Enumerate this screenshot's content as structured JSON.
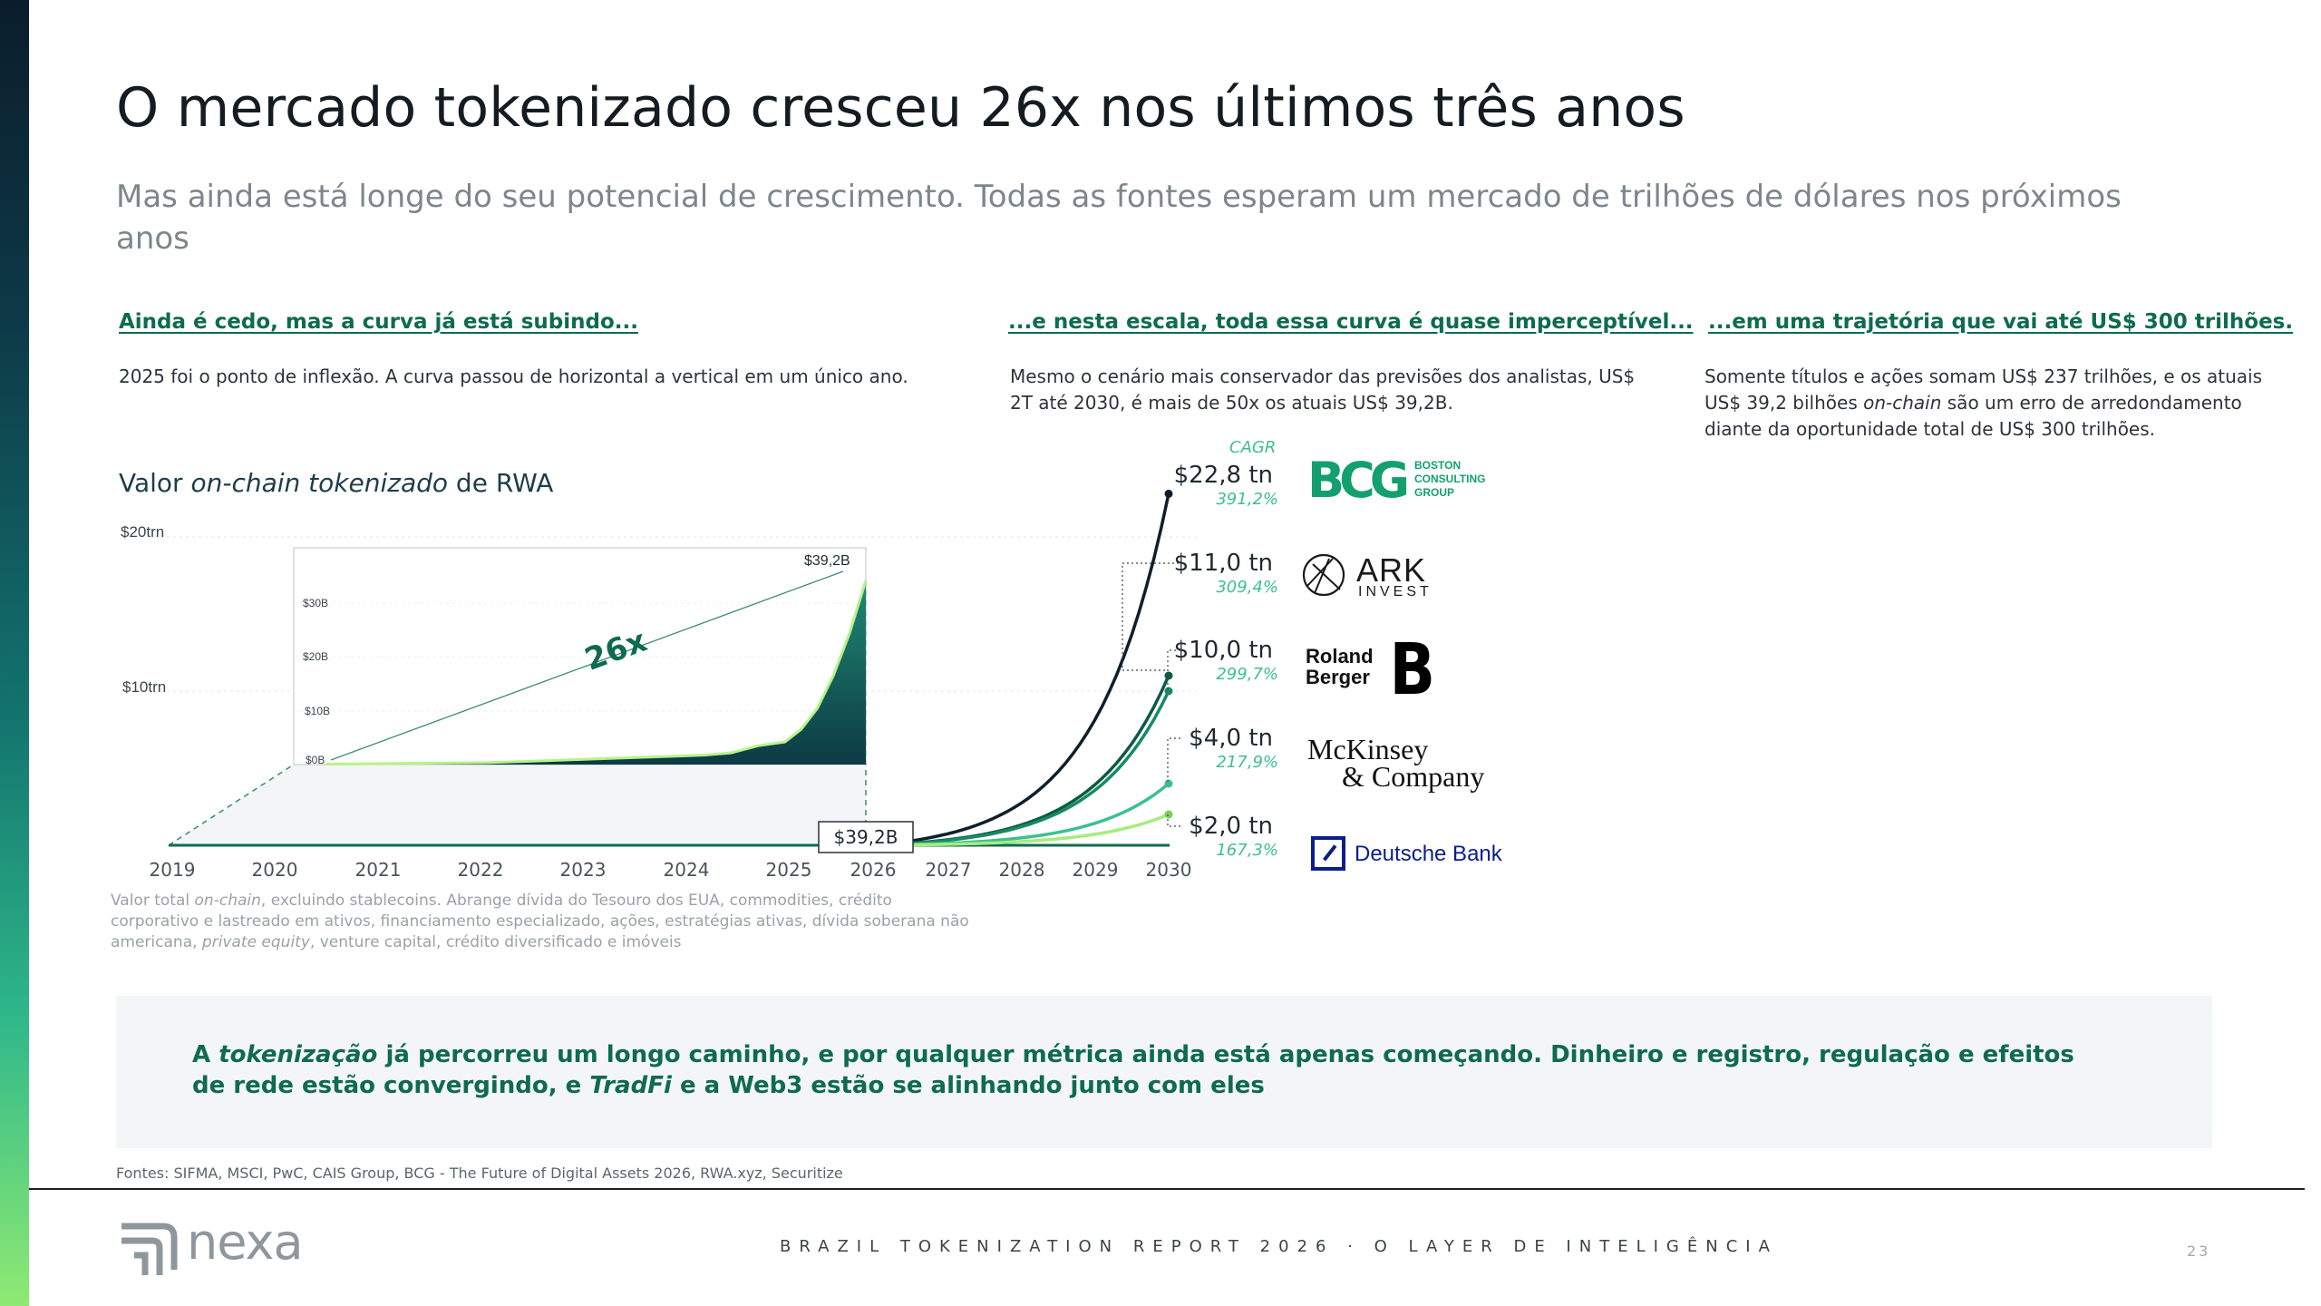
{
  "title": "O mercado tokenizado cresceu 26x nos últimos três anos",
  "subtitle": "Mas ainda está longe do seu potencial de crescimento. Todas as fontes esperam um mercado de trilhões de dólares nos próximos anos",
  "columns": [
    {
      "heading": "Ainda é cedo, mas a curva já está subindo...",
      "text": "2025 foi o ponto de inflexão. A curva passou de horizontal a vertical em um único ano."
    },
    {
      "heading": "...e nesta escala, toda essa curva é quase imperceptível...",
      "text": "Mesmo o cenário mais conservador das previsões dos analistas, US$ 2T até 2030, é mais de 50x os atuais US$ 39,2B."
    },
    {
      "heading": "...em uma trajetória que vai até US$ 300 trilhões.",
      "text_before": "Somente títulos e ações somam US$ 237 trilhões, e os atuais US$ 39,2 bilhões ",
      "text_italic": "on-chain",
      "text_after": " são um erro de arredondamento diante da oportunidade total de US$ 300 trilhões."
    }
  ],
  "chart": {
    "title_pre": "Valor ",
    "title_italic": "on-chain tokenizado",
    "title_post": " de RWA",
    "note_pre": "Valor total ",
    "note_italic1": "on-chain",
    "note_mid": ", excluindo stablecoins. Abrange dívida do Tesouro dos EUA, commodities, crédito corporativo e lastreado em ativos, financiamento especializado, ações, estratégias ativas, dívida soberana não americana, ",
    "note_italic2": "private equity",
    "note_post": ", venture capital, crédito diversificado e imóveis",
    "cagr_label": "CAGR",
    "multiplier_label": "26x",
    "current_label": "$39,2B",
    "inset_peak_label": "$39,2B",
    "inset_axis": [
      "$0B",
      "$10B",
      "$20B",
      "$30B"
    ]
  },
  "chart_data": {
    "type": "line",
    "x": [
      2019,
      2020,
      2021,
      2022,
      2023,
      2024,
      2025,
      2026,
      2027,
      2028,
      2029,
      2030
    ],
    "y_tick_labels": [
      "$10trn",
      "$20trn"
    ],
    "ylim_trn": [
      0,
      20
    ],
    "historical_inset": {
      "unit": "B",
      "ylim": [
        0,
        39.2
      ],
      "end_value": 39.2,
      "note": "zoom of 2019–2026 actuals"
    },
    "series": [
      {
        "name": "Boston Consulting Group",
        "value_2030": "$22,8 tn",
        "cagr": "391,2%",
        "value_trn": 22.8,
        "color": "#0e1f2c"
      },
      {
        "name": "ARK Invest",
        "value_2030": "$11,0 tn",
        "cagr": "309,4%",
        "value_trn": 11.0,
        "color": "#0c5a45"
      },
      {
        "name": "Roland Berger",
        "value_2030": "$10,0 tn",
        "cagr": "299,7%",
        "value_trn": 10.0,
        "color": "#178a62"
      },
      {
        "name": "McKinsey & Company",
        "value_2030": "$4,0 tn",
        "cagr": "217,9%",
        "value_trn": 4.0,
        "color": "#3cbf93"
      },
      {
        "name": "Deutsche Bank",
        "value_2030": "$2,0 tn",
        "cagr": "167,3%",
        "value_trn": 2.0,
        "color": "#a6ec7e"
      }
    ]
  },
  "logos": {
    "bcg_mark": "BCG",
    "bcg_text": [
      "BOSTON",
      "CONSULTING",
      "GROUP"
    ],
    "ark_top": "ARK",
    "ark_bottom": "INVEST",
    "roland": [
      "Roland",
      "Berger"
    ],
    "roland_mark": "B",
    "mckinsey": [
      "McKinsey",
      "& Company"
    ],
    "deutsche": "Deutsche Bank"
  },
  "callout": {
    "pre": "A ",
    "italic1": "tokenização",
    "mid": " já percorreu um longo caminho, e por qualquer métrica ainda está apenas começando. Dinheiro e registro, regulação e efeitos de rede estão convergindo, e ",
    "italic2": "TradFi",
    "post": " e a Web3 estão se alinhando junto com eles"
  },
  "sources": "Fontes: SIFMA, MSCI, PwC, CAIS Group, BCG - The Future of Digital Assets 2026, RWA.xyz, Securitize",
  "footer": {
    "brand": "nexa",
    "report": "BRAZIL TOKENIZATION REPORT 2026 · O LAYER DE INTELIGÊNCIA",
    "page": "23"
  },
  "colors": {
    "accent_green": "#0e6b4e",
    "dark_navy": "#0e1f2c",
    "light_green": "#a6ec7e"
  }
}
